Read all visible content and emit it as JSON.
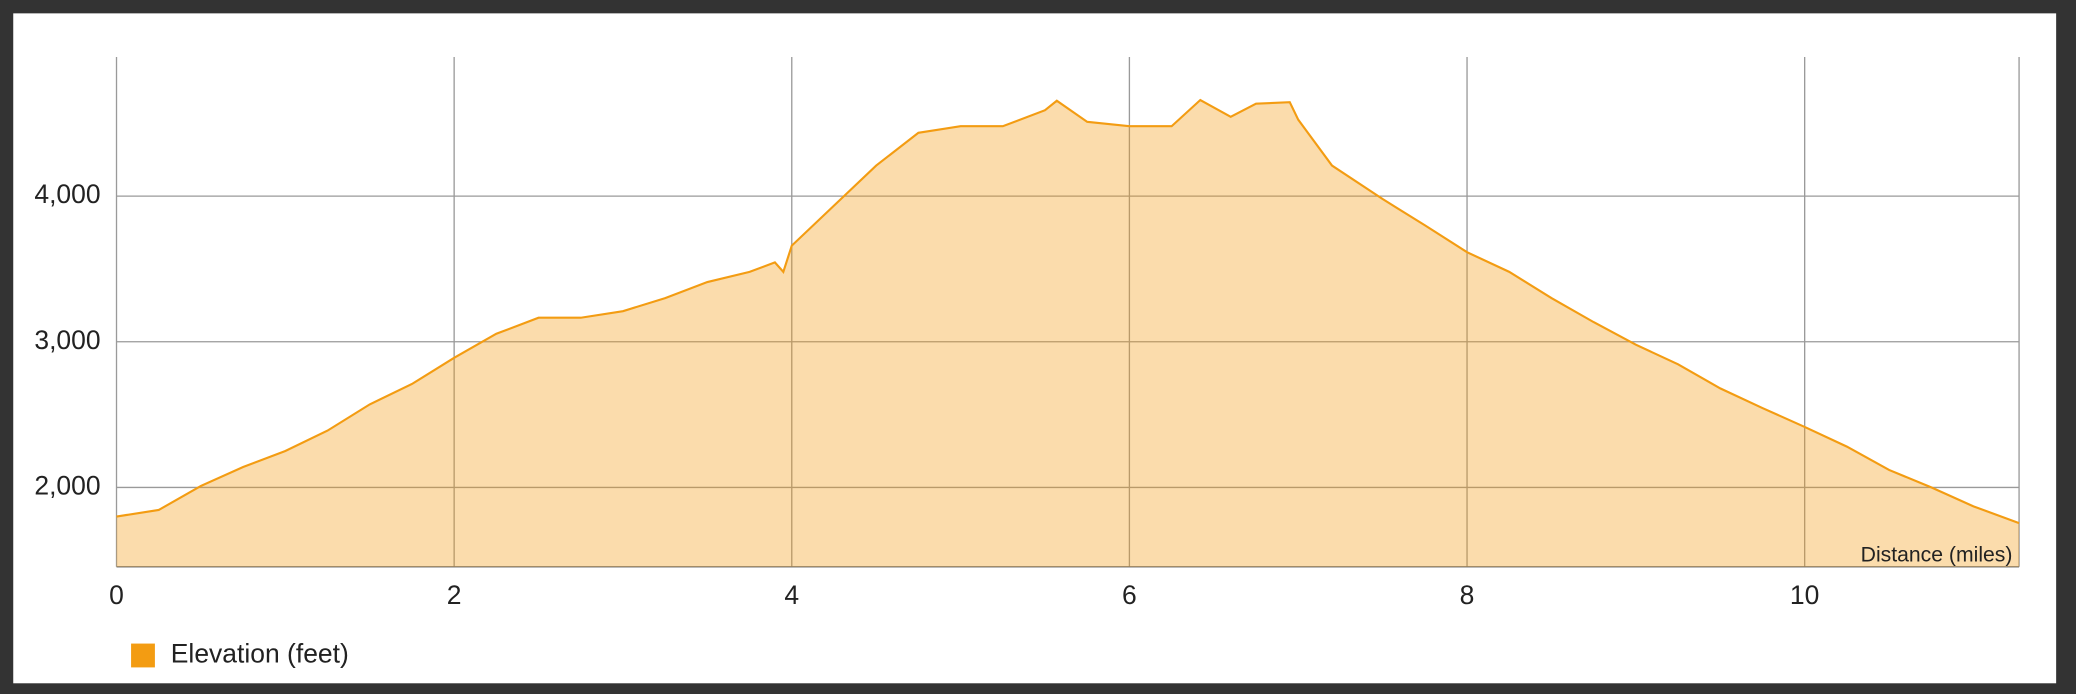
{
  "chart_data": {
    "type": "area",
    "x_label": "Distance (miles)",
    "x": [
      0,
      0.25,
      0.5,
      0.75,
      1,
      1.25,
      1.5,
      1.75,
      2,
      2.25,
      2.5,
      2.75,
      3,
      3.25,
      3.5,
      3.75,
      3.9,
      3.95,
      4,
      4.25,
      4.5,
      4.75,
      5,
      5.25,
      5.5,
      5.57,
      5.75,
      6,
      6.25,
      6.42,
      6.6,
      6.75,
      6.95,
      7,
      7.2,
      7.5,
      7.75,
      8,
      8.25,
      8.5,
      8.75,
      9,
      9.25,
      9.5,
      9.75,
      10,
      10.25,
      10.5,
      10.75,
      11,
      11.27
    ],
    "series": [
      {
        "name": "Elevation (feet)",
        "color": "#f39c12",
        "values": [
          1800,
          1845,
          2010,
          2140,
          2250,
          2390,
          2570,
          2710,
          2890,
          3055,
          3165,
          3165,
          3210,
          3300,
          3410,
          3480,
          3545,
          3480,
          3660,
          3935,
          4210,
          4435,
          4480,
          4480,
          4590,
          4655,
          4510,
          4480,
          4480,
          4660,
          4545,
          4635,
          4645,
          4525,
          4210,
          3980,
          3800,
          3615,
          3480,
          3300,
          3135,
          2980,
          2845,
          2680,
          2545,
          2415,
          2280,
          2120,
          2000,
          1870,
          1755
        ]
      }
    ],
    "xlim": [
      0,
      11.27
    ],
    "ylim": [
      1455,
      4955
    ],
    "xticks": [
      0,
      2,
      4,
      6,
      8,
      10
    ],
    "yticks": [
      {
        "value": 2000,
        "label": "2,000"
      },
      {
        "value": 3000,
        "label": "3,000"
      },
      {
        "value": 4000,
        "label": "4,000"
      }
    ],
    "grid": true,
    "legend": "bottom-left"
  }
}
